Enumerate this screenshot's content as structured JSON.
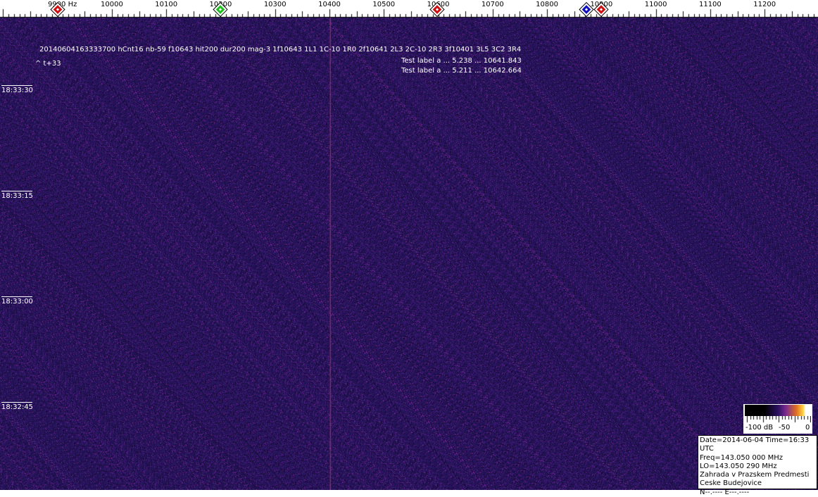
{
  "frequency_axis": {
    "unit_label": "Hz",
    "ticks": [
      9900,
      10000,
      10100,
      10200,
      10300,
      10400,
      10500,
      10600,
      10700,
      10800,
      10900,
      11000,
      11100,
      11200
    ]
  },
  "markers": [
    {
      "freq": 9900,
      "color": "#d01010"
    },
    {
      "freq": 10200,
      "color": "#20c020"
    },
    {
      "freq": 10598,
      "color": "#d01010"
    },
    {
      "freq": 10872,
      "color": "#1010c0"
    },
    {
      "freq": 10900,
      "color": "#d01010"
    }
  ],
  "time_labels": [
    "18:33:30",
    "18:33:15",
    "18:33:00",
    "18:32:45"
  ],
  "overlay": {
    "detection_line": "20140604163333700 hCnt16 nb-59 f10643 hit200 dur200 mag-3 1f10643 1L1 1C-10 1R0 2f10641 2L3 2C-10 2R3 3f10401 3L5 3C2 3R4",
    "time_offset": "^ t+33",
    "test_label_1": "Test label a  ... 5.238  ...  10641.843",
    "test_label_2": "Test label a  ... 5.211  ...  10642.664"
  },
  "colorbar": {
    "labels": [
      "-100 dB",
      "-50",
      "0"
    ]
  },
  "info": {
    "date_time": "Date=2014-06-04 Time=16:33 UTC",
    "freq": "Freq=143.050 000 MHz",
    "lo": "LO=143.050 290 MHz",
    "location1": "Zahrada v Prazskem Predmesti",
    "location2": "Ceske Budejovice",
    "coords": "N--.---- E---.----"
  },
  "colors": {
    "background": "#2a1560",
    "carrier_line": "#c04070"
  }
}
